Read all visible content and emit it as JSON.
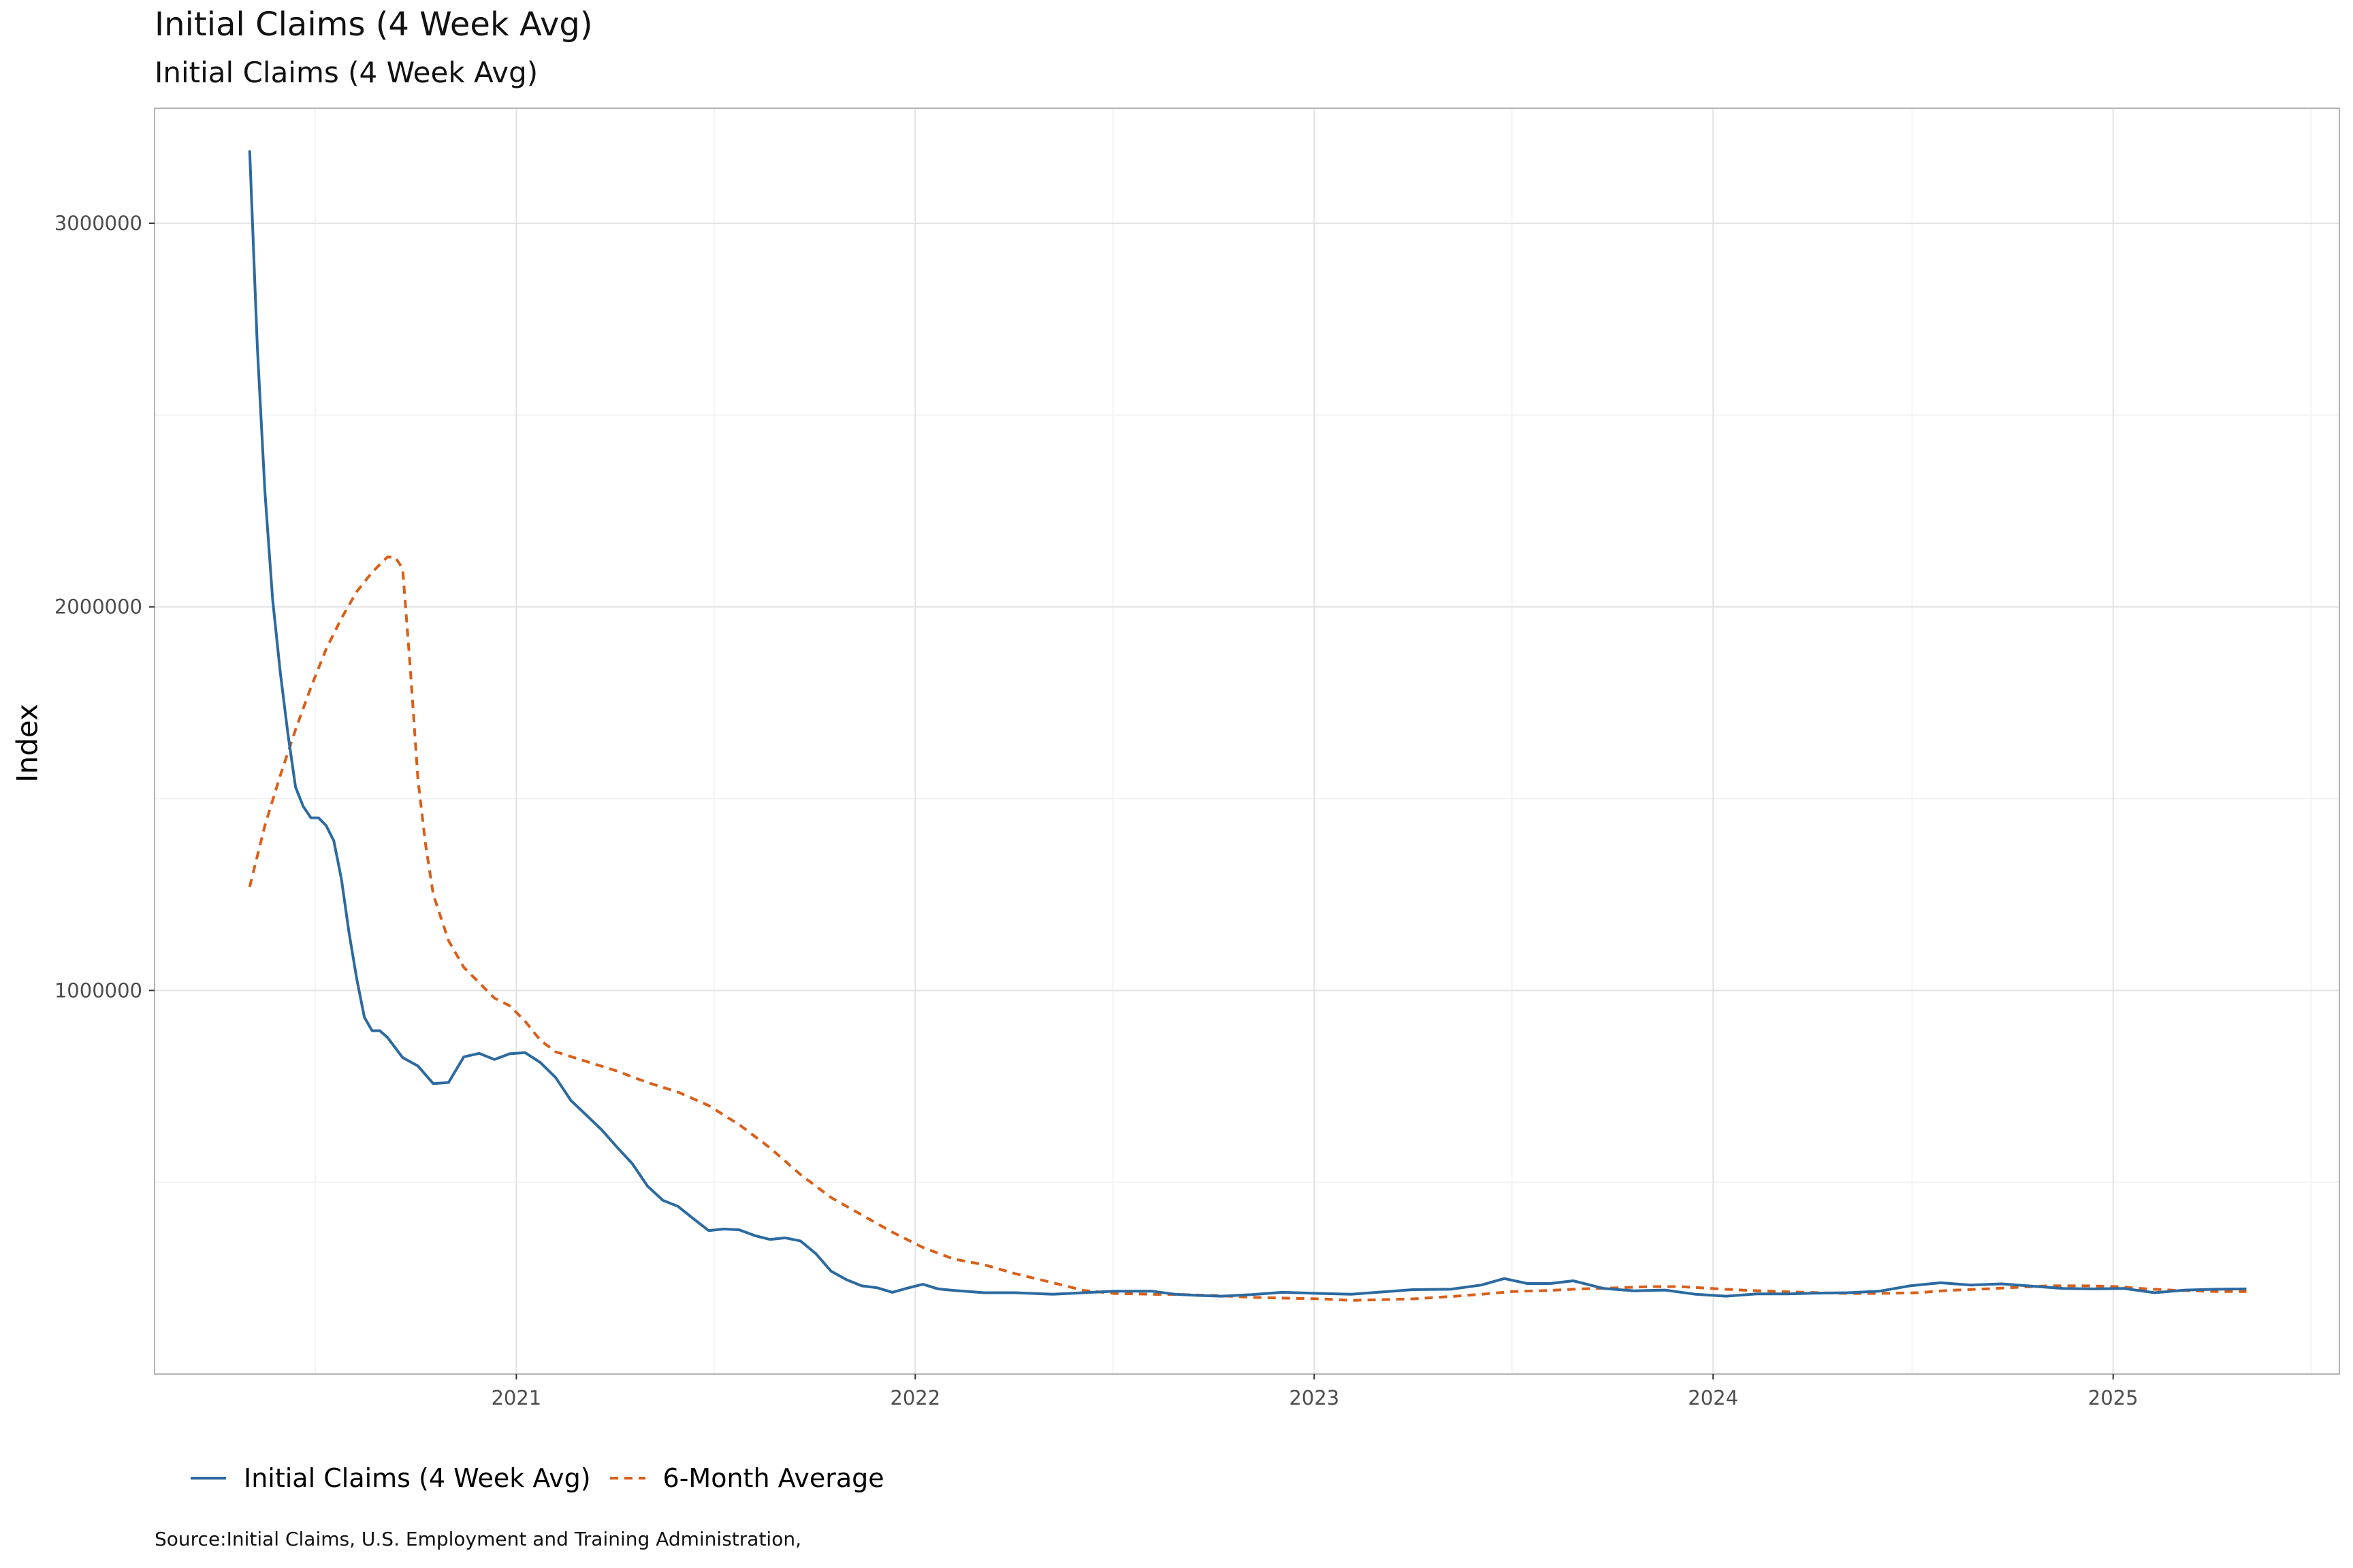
{
  "header": {
    "title": "Initial Claims (4 Week Avg)",
    "subtitle": "Initial Claims (4 Week Avg)"
  },
  "footer": {
    "source": "Source:Initial Claims, U.S. Employment and Training Administration,"
  },
  "legend": {
    "items": [
      {
        "label": "Initial Claims (4 Week Avg)",
        "color": "#2c6aa0",
        "style": "solid"
      },
      {
        "label": "6-Month Average",
        "color": "#d95f1a",
        "style": "dashed"
      }
    ],
    "placement": "bottom-left"
  },
  "chart_data": {
    "type": "line",
    "title": "Initial Claims (4 Week Avg)",
    "subtitle": "Initial Claims (4 Week Avg)",
    "xlabel": "",
    "ylabel": "Index",
    "xlim": [
      "2020-02-05",
      "2025-07-27"
    ],
    "ylim": [
      0,
      3300000
    ],
    "x_ticks": [
      "2021",
      "2022",
      "2023",
      "2024",
      "2025"
    ],
    "y_ticks": [
      1000000,
      2000000,
      3000000
    ],
    "y_tick_labels": [
      "1000000",
      "2000000",
      "3000000"
    ],
    "grid": true,
    "series": [
      {
        "name": "Initial Claims (4 Week Avg)",
        "color": "#2c6aa0",
        "style": "solid",
        "x": [
          "2020-05-02",
          "2020-05-09",
          "2020-05-16",
          "2020-05-23",
          "2020-05-30",
          "2020-06-06",
          "2020-06-13",
          "2020-06-20",
          "2020-06-27",
          "2020-07-04",
          "2020-07-11",
          "2020-07-18",
          "2020-07-25",
          "2020-08-01",
          "2020-08-08",
          "2020-08-15",
          "2020-08-22",
          "2020-08-29",
          "2020-09-05",
          "2020-09-19",
          "2020-10-03",
          "2020-10-17",
          "2020-10-31",
          "2020-11-14",
          "2020-11-28",
          "2020-12-12",
          "2020-12-26",
          "2021-01-09",
          "2021-01-23",
          "2021-02-06",
          "2021-02-20",
          "2021-03-06",
          "2021-03-20",
          "2021-04-03",
          "2021-04-17",
          "2021-05-01",
          "2021-05-15",
          "2021-05-29",
          "2021-06-12",
          "2021-06-26",
          "2021-07-10",
          "2021-07-24",
          "2021-08-07",
          "2021-08-21",
          "2021-09-04",
          "2021-09-18",
          "2021-10-02",
          "2021-10-16",
          "2021-10-30",
          "2021-11-13",
          "2021-11-27",
          "2021-12-11",
          "2021-12-25",
          "2022-01-08",
          "2022-01-22",
          "2022-02-05",
          "2022-02-19",
          "2022-03-05",
          "2022-04-02",
          "2022-05-07",
          "2022-06-04",
          "2022-07-02",
          "2022-08-06",
          "2022-08-27",
          "2022-09-17",
          "2022-10-08",
          "2022-11-05",
          "2022-12-03",
          "2023-01-07",
          "2023-02-04",
          "2023-03-04",
          "2023-04-01",
          "2023-05-06",
          "2023-06-03",
          "2023-06-24",
          "2023-07-15",
          "2023-08-05",
          "2023-08-26",
          "2023-09-23",
          "2023-10-21",
          "2023-11-18",
          "2023-12-16",
          "2024-01-13",
          "2024-02-10",
          "2024-03-09",
          "2024-04-06",
          "2024-05-04",
          "2024-06-01",
          "2024-06-29",
          "2024-07-27",
          "2024-08-24",
          "2024-09-21",
          "2024-10-19",
          "2024-11-16",
          "2024-12-14",
          "2025-01-11",
          "2025-02-08",
          "2025-03-08",
          "2025-04-05",
          "2025-05-03"
        ],
        "values": [
          3190000,
          2680000,
          2300000,
          2020000,
          1830000,
          1670000,
          1530000,
          1480000,
          1450000,
          1450000,
          1430000,
          1390000,
          1290000,
          1150000,
          1030000,
          930000,
          895000,
          895000,
          878000,
          825000,
          803000,
          757000,
          760000,
          827000,
          836000,
          820000,
          835000,
          838000,
          812000,
          773000,
          713000,
          675000,
          637000,
          592000,
          549000,
          490000,
          453000,
          437000,
          405000,
          374000,
          378000,
          376000,
          361000,
          351000,
          355000,
          347000,
          314000,
          268000,
          246000,
          230000,
          225000,
          213000,
          224000,
          234000,
          222000,
          218000,
          215000,
          212000,
          212000,
          208000,
          212000,
          216000,
          216000,
          208000,
          205000,
          203000,
          207000,
          213000,
          210000,
          208000,
          214000,
          220000,
          221000,
          232000,
          249000,
          236000,
          236000,
          243000,
          223000,
          217000,
          219000,
          208000,
          203000,
          209000,
          209000,
          211000,
          212000,
          216000,
          230000,
          238000,
          232000,
          235000,
          229000,
          223000,
          222000,
          223000,
          212000,
          219000,
          221000,
          222000
        ]
      },
      {
        "name": "6-Month Average",
        "color": "#d95f1a",
        "style": "dashed",
        "x": [
          "2020-05-02",
          "2020-05-16",
          "2020-05-30",
          "2020-06-13",
          "2020-06-27",
          "2020-07-11",
          "2020-07-25",
          "2020-08-08",
          "2020-08-22",
          "2020-09-05",
          "2020-09-12",
          "2020-09-19",
          "2020-09-26",
          "2020-10-03",
          "2020-10-10",
          "2020-10-17",
          "2020-10-31",
          "2020-11-14",
          "2020-11-28",
          "2020-12-12",
          "2020-12-26",
          "2021-01-09",
          "2021-01-23",
          "2021-02-06",
          "2021-03-06",
          "2021-04-03",
          "2021-05-01",
          "2021-05-29",
          "2021-06-26",
          "2021-07-24",
          "2021-08-21",
          "2021-09-18",
          "2021-10-16",
          "2021-11-13",
          "2021-12-11",
          "2022-01-08",
          "2022-02-05",
          "2022-03-05",
          "2022-04-02",
          "2022-05-07",
          "2022-06-04",
          "2022-07-02",
          "2022-08-06",
          "2022-09-03",
          "2022-10-01",
          "2022-11-05",
          "2022-12-03",
          "2023-01-07",
          "2023-02-04",
          "2023-03-04",
          "2023-04-01",
          "2023-05-06",
          "2023-06-03",
          "2023-07-01",
          "2023-08-05",
          "2023-09-02",
          "2023-10-07",
          "2023-11-04",
          "2023-12-02",
          "2024-01-06",
          "2024-02-03",
          "2024-03-02",
          "2024-04-06",
          "2024-05-04",
          "2024-06-01",
          "2024-07-06",
          "2024-08-03",
          "2024-09-07",
          "2024-10-05",
          "2024-11-02",
          "2024-12-07",
          "2025-01-04",
          "2025-02-01",
          "2025-03-01",
          "2025-04-05",
          "2025-05-03"
        ],
        "values": [
          1270000,
          1430000,
          1560000,
          1680000,
          1790000,
          1890000,
          1970000,
          2040000,
          2090000,
          2130000,
          2130000,
          2100000,
          1840000,
          1550000,
          1380000,
          1250000,
          1130000,
          1060000,
          1020000,
          980000,
          960000,
          920000,
          870000,
          840000,
          815000,
          790000,
          760000,
          735000,
          700000,
          650000,
          590000,
          520000,
          460000,
          415000,
          370000,
          330000,
          300000,
          285000,
          262000,
          238000,
          218000,
          210000,
          208000,
          207000,
          205000,
          200000,
          198000,
          196000,
          192000,
          194000,
          196000,
          202000,
          208000,
          215000,
          218000,
          222000,
          225000,
          228000,
          228000,
          222000,
          218000,
          215000,
          212000,
          210000,
          210000,
          212000,
          218000,
          222000,
          226000,
          230000,
          230000,
          228000,
          222000,
          218000,
          215000,
          215000
        ]
      }
    ]
  }
}
